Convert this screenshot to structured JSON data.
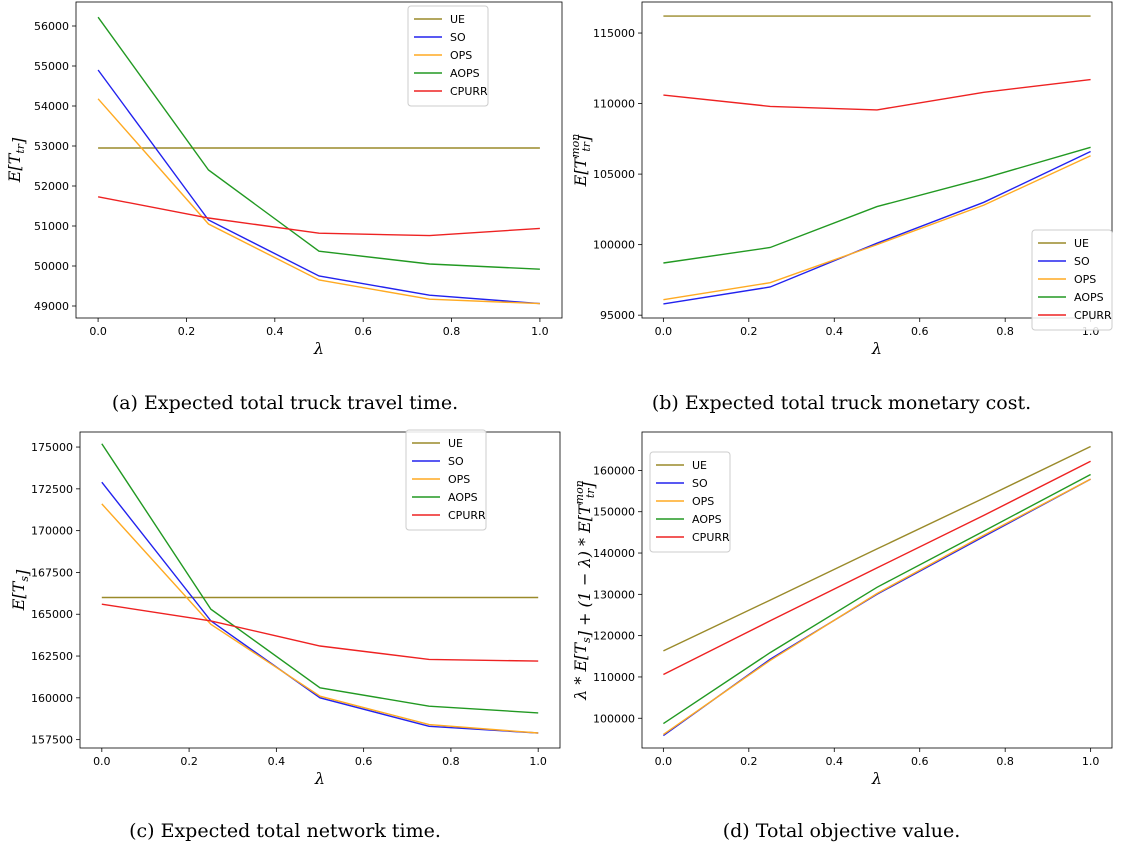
{
  "colors": {
    "UE": "#9a8a2a",
    "SO": "#2222ee",
    "OPS": "#ffaa22",
    "AOPS": "#229922",
    "CPURR": "#ee2222"
  },
  "chart_data": [
    {
      "type": "line",
      "caption": "(a) Expected total truck travel time.",
      "xlabel": "λ",
      "ylabel": "E[T_tr]",
      "x": [
        0.0,
        0.25,
        0.5,
        0.75,
        1.0
      ],
      "xticks": [
        "0.0",
        "0.2",
        "0.4",
        "0.6",
        "0.8",
        "1.0"
      ],
      "xlim": [
        -0.05,
        1.05
      ],
      "yticks": [
        "49000",
        "50000",
        "51000",
        "52000",
        "53000",
        "54000",
        "55000",
        "56000"
      ],
      "ylim": [
        48700,
        56600
      ],
      "legend_position": "top-right",
      "series": [
        {
          "name": "UE",
          "values": [
            52950,
            52950,
            52950,
            52950,
            52950
          ]
        },
        {
          "name": "SO",
          "values": [
            54900,
            51150,
            49750,
            49270,
            49060
          ]
        },
        {
          "name": "OPS",
          "values": [
            54180,
            51050,
            49650,
            49170,
            49060
          ]
        },
        {
          "name": "AOPS",
          "values": [
            56220,
            52400,
            50370,
            50050,
            49920
          ]
        },
        {
          "name": "CPURR",
          "values": [
            51730,
            51200,
            50820,
            50760,
            50940
          ]
        }
      ]
    },
    {
      "type": "line",
      "caption": "(b) Expected total truck monetary cost.",
      "xlabel": "λ",
      "ylabel": "E[T_tr^mon]",
      "x": [
        0.0,
        0.25,
        0.5,
        0.75,
        1.0
      ],
      "xticks": [
        "0.0",
        "0.2",
        "0.4",
        "0.6",
        "0.8",
        "1.0"
      ],
      "xlim": [
        -0.05,
        1.05
      ],
      "yticks": [
        "95000",
        "100000",
        "105000",
        "110000",
        "115000"
      ],
      "ylim": [
        94800,
        117200
      ],
      "legend_position": "bottom-right",
      "series": [
        {
          "name": "UE",
          "values": [
            116200,
            116200,
            116200,
            116200,
            116200
          ]
        },
        {
          "name": "SO",
          "values": [
            95800,
            97000,
            100100,
            103000,
            106600
          ]
        },
        {
          "name": "OPS",
          "values": [
            96100,
            97300,
            100000,
            102800,
            106300
          ]
        },
        {
          "name": "AOPS",
          "values": [
            98700,
            99800,
            102700,
            104700,
            106900
          ]
        },
        {
          "name": "CPURR",
          "values": [
            110600,
            109800,
            109550,
            110800,
            111700
          ]
        }
      ]
    },
    {
      "type": "line",
      "caption": "(c) Expected total network time.",
      "xlabel": "λ",
      "ylabel": "E[T_s]",
      "x": [
        0.0,
        0.25,
        0.5,
        0.75,
        1.0
      ],
      "xticks": [
        "0.0",
        "0.2",
        "0.4",
        "0.6",
        "0.8",
        "1.0"
      ],
      "xlim": [
        -0.05,
        1.05
      ],
      "yticks": [
        "157500",
        "160000",
        "162500",
        "165000",
        "167500",
        "170000",
        "172500",
        "175000"
      ],
      "ylim": [
        157000,
        175900
      ],
      "legend_position": "top-right",
      "series": [
        {
          "name": "UE",
          "values": [
            166000,
            166000,
            166000,
            166000,
            166000
          ]
        },
        {
          "name": "SO",
          "values": [
            172900,
            164600,
            160000,
            158300,
            157900
          ]
        },
        {
          "name": "OPS",
          "values": [
            171600,
            164400,
            160100,
            158400,
            157900
          ]
        },
        {
          "name": "AOPS",
          "values": [
            175200,
            165300,
            160600,
            159500,
            159100
          ]
        },
        {
          "name": "CPURR",
          "values": [
            165600,
            164600,
            163100,
            162300,
            162200
          ]
        }
      ]
    },
    {
      "type": "line",
      "caption": "(d) Total objective value.",
      "xlabel": "λ",
      "ylabel": "λ * E[T_s] + (1 − λ) * E[T_tr^mon]",
      "x": [
        0.0,
        0.25,
        0.5,
        0.75,
        1.0
      ],
      "xticks": [
        "0.0",
        "0.2",
        "0.4",
        "0.6",
        "0.8",
        "1.0"
      ],
      "xlim": [
        -0.05,
        1.05
      ],
      "yticks": [
        "100000",
        "110000",
        "120000",
        "130000",
        "140000",
        "150000",
        "160000"
      ],
      "ylim": [
        92800,
        169300
      ],
      "legend_position": "top-left",
      "series": [
        {
          "name": "UE",
          "values": [
            116300,
            128600,
            141000,
            153300,
            165800
          ]
        },
        {
          "name": "SO",
          "values": [
            95800,
            114300,
            130000,
            144000,
            157900
          ]
        },
        {
          "name": "OPS",
          "values": [
            96100,
            114000,
            130200,
            144300,
            157900
          ]
        },
        {
          "name": "AOPS",
          "values": [
            98700,
            115900,
            131700,
            145300,
            159000
          ]
        },
        {
          "name": "CPURR",
          "values": [
            110600,
            123600,
            136400,
            149100,
            162200
          ]
        }
      ]
    }
  ]
}
